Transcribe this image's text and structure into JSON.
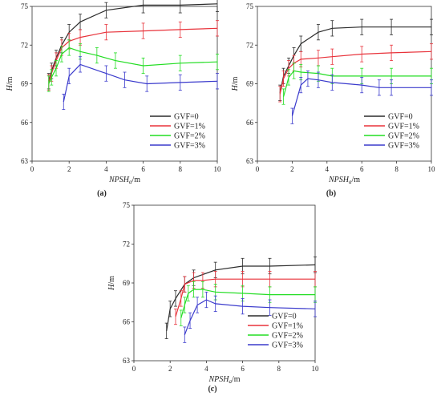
{
  "colors": {
    "GVF=0": "#2b2b2b",
    "GVF=1%": "#e8323a",
    "GVF=2%": "#22dd22",
    "GVF=3%": "#3a3acc"
  },
  "chart_data": [
    {
      "type": "line",
      "panel_label": "(a)",
      "xlabel_main": "NPSH",
      "xlabel_sub": "a",
      "xlabel_unit": "/m",
      "ylabel_main": "H",
      "ylabel_unit": "/m",
      "xlim": [
        0,
        10
      ],
      "ylim": [
        63,
        75
      ],
      "xticks": [
        0,
        2,
        4,
        6,
        8,
        10
      ],
      "yticks": [
        63,
        66,
        69,
        72,
        75
      ],
      "error_bar": 0.6,
      "legend": "lower-right",
      "series": [
        {
          "name": "GVF=0",
          "x": [
            0.9,
            1.05,
            1.3,
            1.6,
            2.0,
            2.6,
            4.0,
            6.0,
            8.0,
            10.0
          ],
          "y": [
            69.2,
            70.0,
            71.0,
            72.0,
            73.0,
            73.8,
            74.7,
            75.1,
            75.1,
            75.2
          ]
        },
        {
          "name": "GVF=1%",
          "x": [
            0.9,
            1.05,
            1.3,
            1.6,
            2.0,
            2.6,
            4.0,
            6.0,
            8.0,
            10.0
          ],
          "y": [
            69.1,
            69.8,
            70.8,
            71.8,
            72.3,
            72.6,
            73.0,
            73.1,
            73.2,
            73.3
          ]
        },
        {
          "name": "GVF=2%",
          "x": [
            0.9,
            1.05,
            1.3,
            1.6,
            2.0,
            2.6,
            3.5,
            4.5,
            6.0,
            8.0,
            10.0
          ],
          "y": [
            69.0,
            69.5,
            70.2,
            71.3,
            71.8,
            71.5,
            71.2,
            70.8,
            70.4,
            70.6,
            70.7
          ]
        },
        {
          "name": "GVF=3%",
          "x": [
            1.7,
            2.0,
            2.6,
            4.0,
            5.0,
            6.2,
            8.0,
            10.0
          ],
          "y": [
            67.6,
            69.6,
            70.5,
            69.8,
            69.3,
            69.0,
            69.1,
            69.2
          ]
        }
      ]
    },
    {
      "type": "line",
      "panel_label": "(b)",
      "xlabel_main": "NPSH",
      "xlabel_sub": "a",
      "xlabel_unit": "/m",
      "ylabel_main": "H",
      "ylabel_unit": "/m",
      "xlim": [
        0,
        10
      ],
      "ylim": [
        63,
        75
      ],
      "xticks": [
        0,
        2,
        4,
        6,
        8,
        10
      ],
      "yticks": [
        63,
        66,
        69,
        72,
        75
      ],
      "error_bar": 0.6,
      "legend": "lower-right",
      "series": [
        {
          "name": "GVF=0",
          "x": [
            1.3,
            1.5,
            1.8,
            2.1,
            2.5,
            3.5,
            4.3,
            6.0,
            7.7,
            10.0
          ],
          "y": [
            68.3,
            69.6,
            70.4,
            71.2,
            72.1,
            73.0,
            73.3,
            73.4,
            73.4,
            73.4
          ]
        },
        {
          "name": "GVF=1%",
          "x": [
            1.3,
            1.5,
            1.8,
            2.1,
            2.5,
            3.5,
            4.3,
            6.0,
            7.7,
            10.0
          ],
          "y": [
            68.2,
            69.4,
            70.2,
            70.6,
            70.9,
            71.0,
            71.1,
            71.3,
            71.4,
            71.5
          ]
        },
        {
          "name": "GVF=2%",
          "x": [
            1.5,
            1.8,
            2.1,
            2.5,
            3.5,
            4.3,
            6.0,
            7.7,
            10.0
          ],
          "y": [
            68.0,
            69.5,
            70.0,
            69.9,
            69.8,
            69.6,
            69.6,
            69.6,
            69.6
          ]
        },
        {
          "name": "GVF=3%",
          "x": [
            2.0,
            2.5,
            2.9,
            3.5,
            4.3,
            6.0,
            7.0,
            7.7,
            10.0
          ],
          "y": [
            66.5,
            68.9,
            69.4,
            69.3,
            69.1,
            68.9,
            68.7,
            68.7,
            68.7
          ]
        }
      ]
    },
    {
      "type": "line",
      "panel_label": "(c)",
      "xlabel_main": "NPSH",
      "xlabel_sub": "a",
      "xlabel_unit": "/m",
      "ylabel_main": "H",
      "ylabel_unit": "/m",
      "xlim": [
        0,
        10
      ],
      "ylim": [
        63,
        75
      ],
      "xticks": [
        0,
        2,
        4,
        6,
        8,
        10
      ],
      "yticks": [
        63,
        66,
        69,
        72,
        75
      ],
      "error_bar": 0.6,
      "legend": "lower-right",
      "series": [
        {
          "name": "GVF=0",
          "x": [
            1.8,
            2.0,
            2.3,
            2.8,
            3.3,
            4.5,
            6.0,
            7.5,
            10.0
          ],
          "y": [
            65.3,
            67.0,
            67.8,
            68.9,
            69.4,
            70.0,
            70.3,
            70.3,
            70.4
          ]
        },
        {
          "name": "GVF=1%",
          "x": [
            2.3,
            2.6,
            2.8,
            3.3,
            3.8,
            4.5,
            6.0,
            7.5,
            10.0
          ],
          "y": [
            66.4,
            67.8,
            68.9,
            69.2,
            69.2,
            69.3,
            69.3,
            69.3,
            69.3
          ]
        },
        {
          "name": "GVF=2%",
          "x": [
            2.6,
            2.8,
            3.0,
            3.3,
            3.8,
            4.5,
            6.0,
            7.5,
            10.0
          ],
          "y": [
            66.3,
            67.3,
            68.2,
            68.5,
            68.5,
            68.3,
            68.2,
            68.1,
            68.1
          ]
        },
        {
          "name": "GVF=3%",
          "x": [
            2.8,
            3.1,
            3.5,
            4.0,
            4.5,
            6.0,
            7.5,
            10.0
          ],
          "y": [
            65.0,
            66.1,
            67.3,
            67.7,
            67.4,
            67.2,
            67.1,
            67.0
          ]
        }
      ]
    }
  ]
}
